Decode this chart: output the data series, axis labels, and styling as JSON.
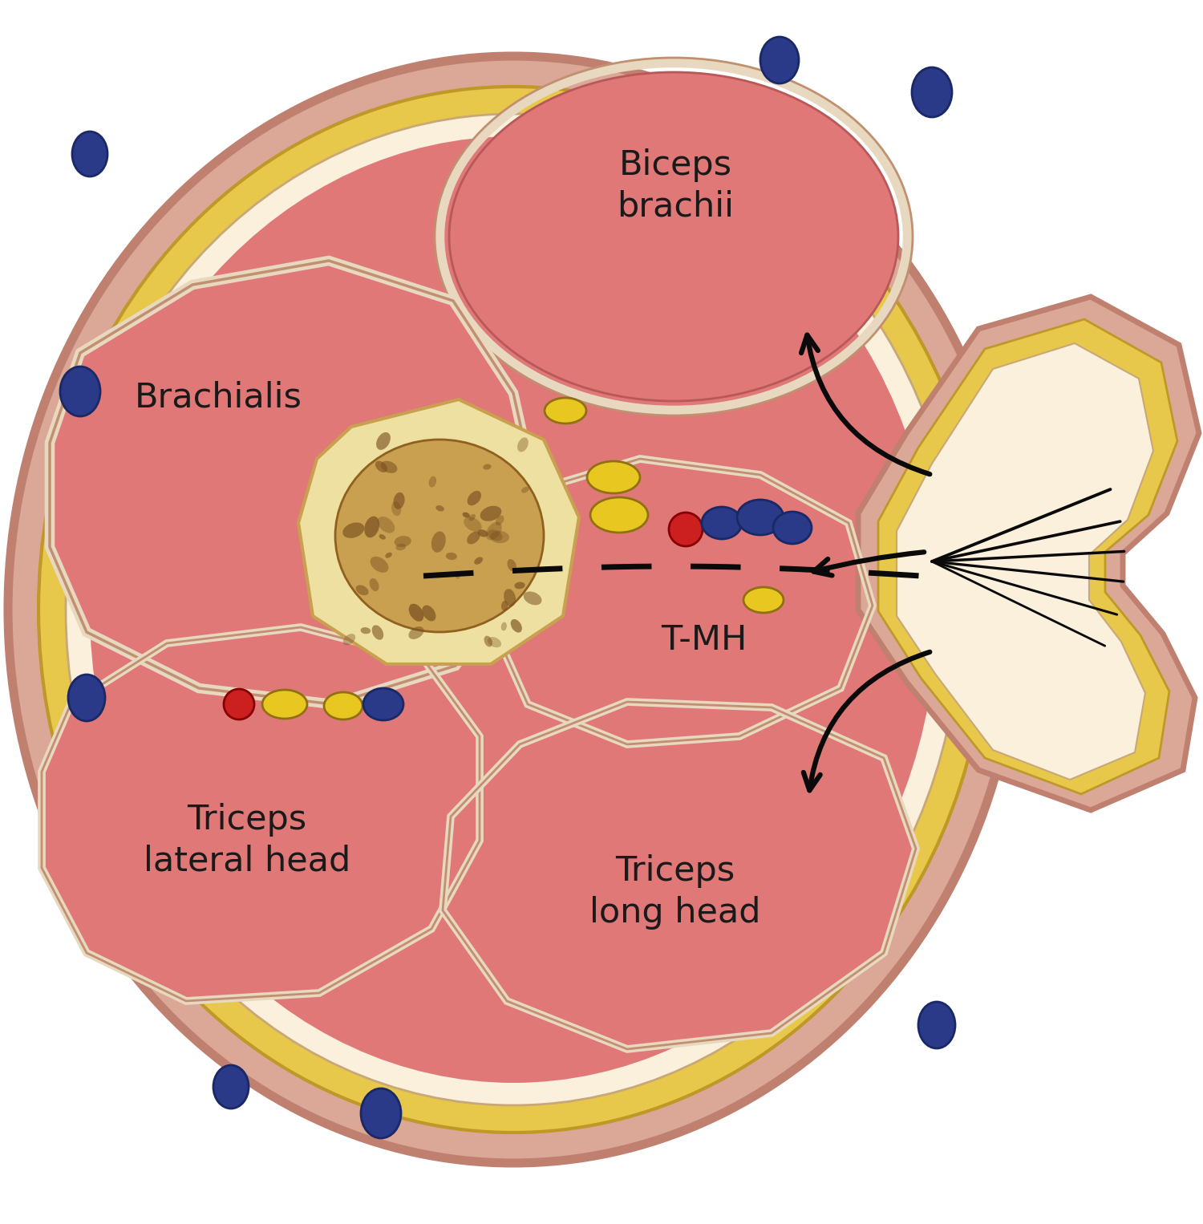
{
  "bg_color": "#FFFFFF",
  "skin_outer_color": "#DBA898",
  "skin_border_color": "#C08070",
  "fat_color": "#E8C84A",
  "fat_light": "#F5E090",
  "fascia_color": "#FAF0DC",
  "muscle_fill": "#E07878",
  "muscle_light": "#EFA090",
  "muscle_dark": "#C05858",
  "nerve_bg": "#EEE0A0",
  "nerve_inner": "#C8A050",
  "nerve_speckle": "#7A5020",
  "nerve_yellow": "#E8C820",
  "artery_color": "#CC2020",
  "vein_color": "#2A3A88",
  "arrow_color": "#0A0A0A",
  "text_color": "#1A1A1A",
  "dashed_color": "#0A0A0A",
  "labels": {
    "biceps_brachii": "Biceps\nbrachii",
    "brachialis": "Brachialis",
    "triceps_lateral": "Triceps\nlateral head",
    "triceps_long": "Triceps\nlong head",
    "tmh": "T-MH"
  },
  "figsize": [
    15.0,
    15.26
  ],
  "dpi": 100
}
